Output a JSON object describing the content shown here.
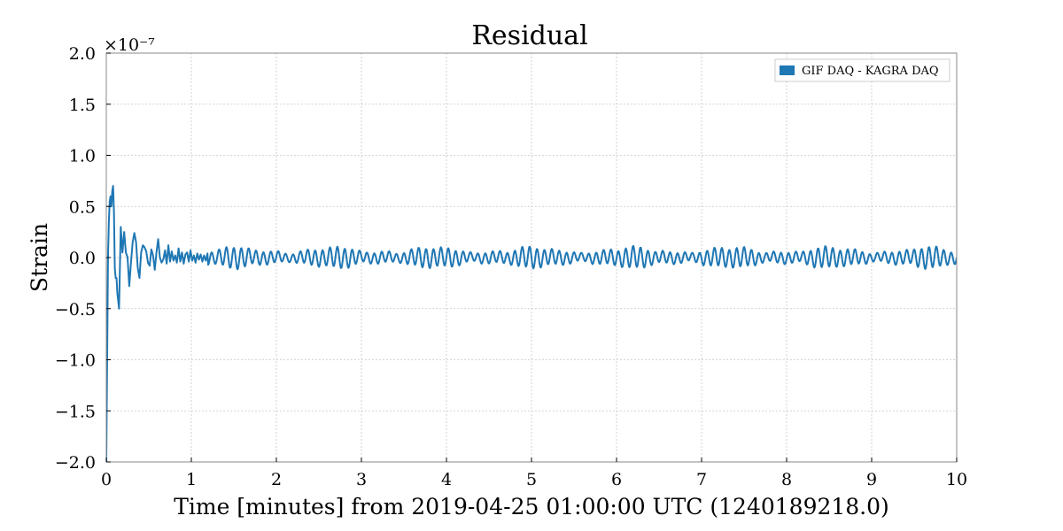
{
  "chart_data": {
    "type": "line",
    "title": "Residual",
    "xlabel": "Time [minutes] from 2019-04-25 01:00:00 UTC (1240189218.0)",
    "ylabel": "Strain",
    "y_multiplier": "×10⁻⁷",
    "xlim": [
      0,
      10
    ],
    "ylim": [
      -2.0,
      2.0
    ],
    "x_ticks": [
      0,
      1,
      2,
      3,
      4,
      5,
      6,
      7,
      8,
      9,
      10
    ],
    "x_tick_labels": [
      "0",
      "1",
      "2",
      "3",
      "4",
      "5",
      "6",
      "7",
      "8",
      "9",
      "10"
    ],
    "y_ticks": [
      -2.0,
      -1.5,
      -1.0,
      -0.5,
      0.0,
      0.5,
      1.0,
      1.5,
      2.0
    ],
    "y_tick_labels": [
      "−2.0",
      "−1.5",
      "−1.0",
      "−0.5",
      "0.0",
      "0.5",
      "1.0",
      "1.5",
      "2.0"
    ],
    "grid": true,
    "legend_position": "top-right",
    "series": [
      {
        "name": "GIF DAQ - KAGRA DAQ",
        "color": "#1f77b4",
        "x": [
          0.0,
          0.01,
          0.02,
          0.03,
          0.04,
          0.05,
          0.06,
          0.07,
          0.08,
          0.09,
          0.1,
          0.11,
          0.12,
          0.13,
          0.15,
          0.17,
          0.19,
          0.21,
          0.23,
          0.25,
          0.27,
          0.29,
          0.31,
          0.33,
          0.35,
          0.37,
          0.39,
          0.41,
          0.43,
          0.45,
          0.47,
          0.49,
          0.51,
          0.53,
          0.55,
          0.57,
          0.59,
          0.61,
          0.63,
          0.65,
          0.67,
          0.69,
          0.71,
          0.73,
          0.75,
          0.77,
          0.79,
          0.81,
          0.83,
          0.85,
          0.87,
          0.89,
          0.91,
          0.93,
          0.95,
          0.97,
          0.99,
          1.01,
          1.03,
          1.05,
          1.07,
          1.09,
          1.11,
          1.13,
          1.15,
          1.17,
          1.19
        ],
        "y": [
          -2.0,
          -1.0,
          0.0,
          0.35,
          0.55,
          0.6,
          0.5,
          0.65,
          0.7,
          0.45,
          -0.1,
          -0.2,
          -0.2,
          -0.35,
          -0.5,
          0.3,
          0.05,
          0.25,
          0.05,
          0.0,
          -0.28,
          -0.05,
          0.15,
          0.24,
          0.15,
          -0.1,
          -0.2,
          0.05,
          0.12,
          0.1,
          0.06,
          -0.05,
          -0.08,
          0.08,
          0.02,
          -0.12,
          0.05,
          0.18,
          0.0,
          -0.05,
          -0.02,
          0.07,
          -0.06,
          0.12,
          -0.04,
          0.06,
          -0.03,
          0.02,
          -0.05,
          0.09,
          -0.04,
          0.05,
          -0.06,
          0.03,
          0.05,
          -0.04,
          0.07,
          -0.03,
          0.02,
          -0.05,
          0.04,
          -0.02,
          0.03,
          -0.04,
          0.02,
          -0.03,
          0.04
        ]
      }
    ]
  }
}
